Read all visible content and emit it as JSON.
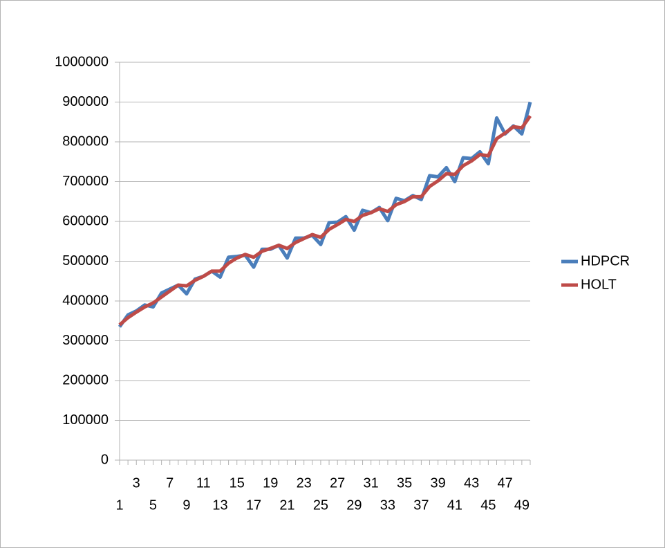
{
  "chart_data": {
    "type": "line",
    "categories": [
      1,
      null,
      3,
      null,
      5,
      null,
      7,
      null,
      9,
      null,
      11,
      null,
      13,
      null,
      15,
      null,
      17,
      null,
      19,
      null,
      21,
      null,
      23,
      null,
      25,
      null,
      27,
      null,
      29,
      null,
      31,
      null,
      33,
      null,
      35,
      null,
      37,
      null,
      39,
      null,
      41,
      null,
      43,
      null,
      45,
      null,
      47,
      null,
      49,
      null
    ],
    "series": [
      {
        "name": "HDPCR",
        "color": "#4a7ebb",
        "values": [
          335000,
          365000,
          375000,
          390000,
          385000,
          420000,
          430000,
          440000,
          418000,
          455000,
          462000,
          475000,
          460000,
          510000,
          512000,
          515000,
          485000,
          530000,
          530000,
          540000,
          508000,
          558000,
          558000,
          565000,
          542000,
          597000,
          598000,
          612000,
          578000,
          628000,
          622000,
          635000,
          602000,
          658000,
          652000,
          665000,
          655000,
          715000,
          712000,
          735000,
          700000,
          760000,
          758000,
          775000,
          745000,
          860000,
          820000,
          840000,
          820000,
          900000
        ]
      },
      {
        "name": "HOLT",
        "color": "#be4b48",
        "values": [
          340000,
          358000,
          372000,
          385000,
          395000,
          410000,
          425000,
          440000,
          438000,
          452000,
          462000,
          475000,
          475000,
          495000,
          508000,
          517000,
          510000,
          525000,
          532000,
          540000,
          532000,
          547000,
          557000,
          567000,
          560000,
          580000,
          592000,
          605000,
          600000,
          615000,
          622000,
          632000,
          625000,
          642000,
          650000,
          662000,
          662000,
          688000,
          702000,
          720000,
          718000,
          740000,
          752000,
          768000,
          765000,
          808000,
          822000,
          838000,
          835000,
          865000
        ]
      }
    ],
    "ylim": [
      0,
      1000000
    ],
    "yticks": [
      0,
      100000,
      200000,
      300000,
      400000,
      500000,
      600000,
      700000,
      800000,
      900000,
      1000000
    ],
    "grid": true,
    "legend": "right"
  }
}
